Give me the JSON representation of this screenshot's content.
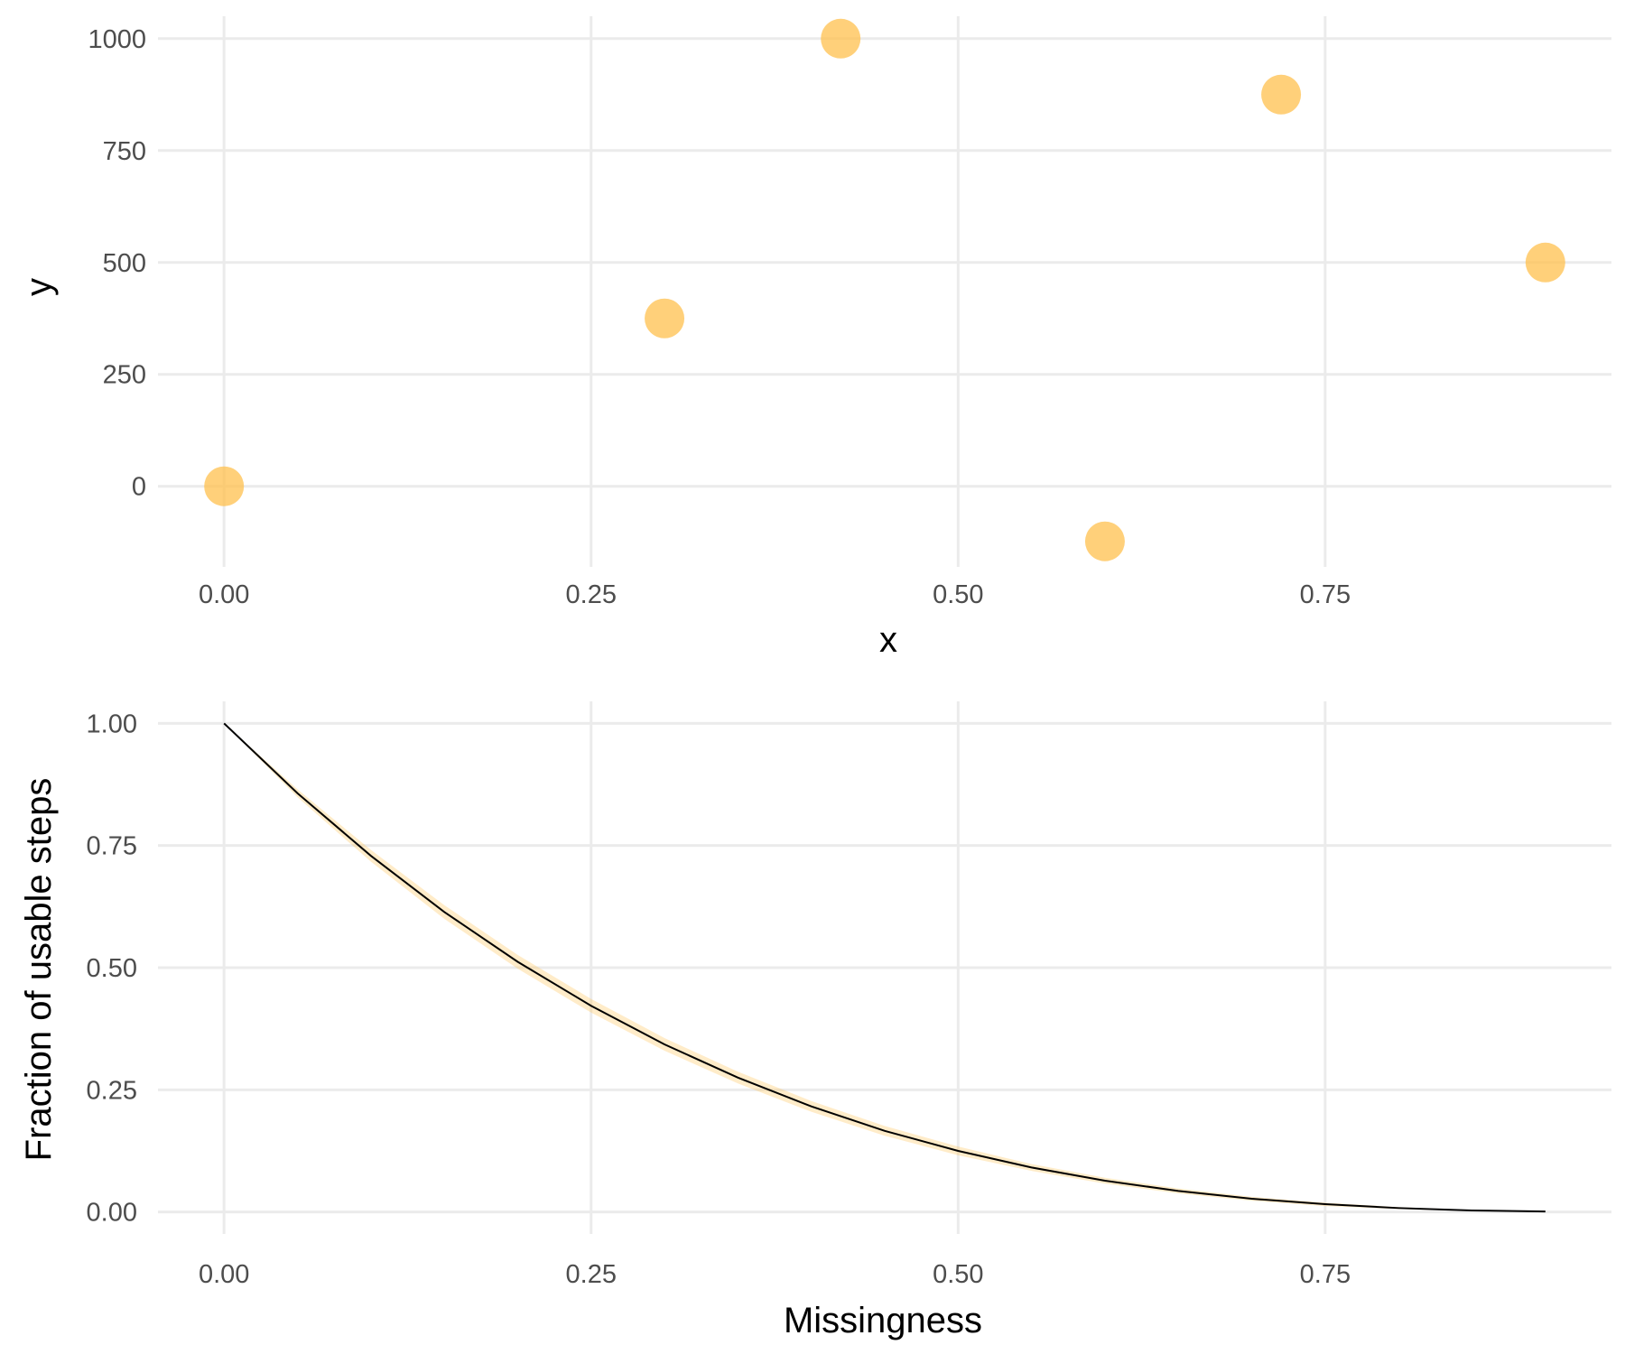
{
  "chart_data": [
    {
      "type": "scatter",
      "xlabel": "x",
      "ylabel": "y",
      "xlim": [
        -0.045,
        0.945
      ],
      "ylim": [
        -180,
        1050
      ],
      "x_ticks": [
        0,
        0.25,
        0.5,
        0.75
      ],
      "x_tick_labels": [
        "0.00",
        "0.25",
        "0.50",
        "0.75"
      ],
      "y_ticks": [
        0,
        250,
        500,
        750,
        1000
      ],
      "y_tick_labels": [
        "0",
        "250",
        "500",
        "750",
        "1000"
      ],
      "grid": true,
      "legend": "none",
      "point_color": "#FFC04D",
      "series": [
        {
          "points": [
            {
              "x": 0.0,
              "y": 0
            },
            {
              "x": 0.3,
              "y": 375
            },
            {
              "x": 0.42,
              "y": 1000
            },
            {
              "x": 0.6,
              "y": -123
            },
            {
              "x": 0.72,
              "y": 875
            },
            {
              "x": 0.9,
              "y": 500
            }
          ]
        }
      ]
    },
    {
      "type": "line",
      "xlabel": "Missingness",
      "ylabel": "Fraction of usable steps",
      "xlim": [
        -0.045,
        0.945
      ],
      "ylim": [
        -0.045,
        1.045
      ],
      "x_ticks": [
        0,
        0.25,
        0.5,
        0.75
      ],
      "x_tick_labels": [
        "0.00",
        "0.25",
        "0.50",
        "0.75"
      ],
      "y_ticks": [
        0,
        0.25,
        0.5,
        0.75,
        1.0
      ],
      "y_tick_labels": [
        "0.00",
        "0.25",
        "0.50",
        "0.75",
        "1.00"
      ],
      "grid": true,
      "legend": "none",
      "line_color": "#000000",
      "band_color": "#FFC04D",
      "series": [
        {
          "x": [
            0.0,
            0.05,
            0.1,
            0.15,
            0.2,
            0.25,
            0.3,
            0.35,
            0.4,
            0.45,
            0.5,
            0.55,
            0.6,
            0.65,
            0.7,
            0.75,
            0.8,
            0.85,
            0.9
          ],
          "y": [
            1.0,
            0.857,
            0.729,
            0.614,
            0.512,
            0.422,
            0.343,
            0.275,
            0.216,
            0.166,
            0.125,
            0.091,
            0.064,
            0.043,
            0.027,
            0.016,
            0.008,
            0.003,
            0.001
          ],
          "band_lower": [
            1.0,
            0.849,
            0.717,
            0.6,
            0.498,
            0.408,
            0.33,
            0.263,
            0.205,
            0.156,
            0.116,
            0.084,
            0.058,
            0.038,
            0.023,
            0.012,
            0.006,
            0.002,
            0.0
          ],
          "band_upper": [
            1.0,
            0.865,
            0.741,
            0.628,
            0.526,
            0.436,
            0.356,
            0.287,
            0.227,
            0.176,
            0.134,
            0.098,
            0.07,
            0.048,
            0.031,
            0.019,
            0.01,
            0.004,
            0.002
          ]
        }
      ]
    }
  ]
}
